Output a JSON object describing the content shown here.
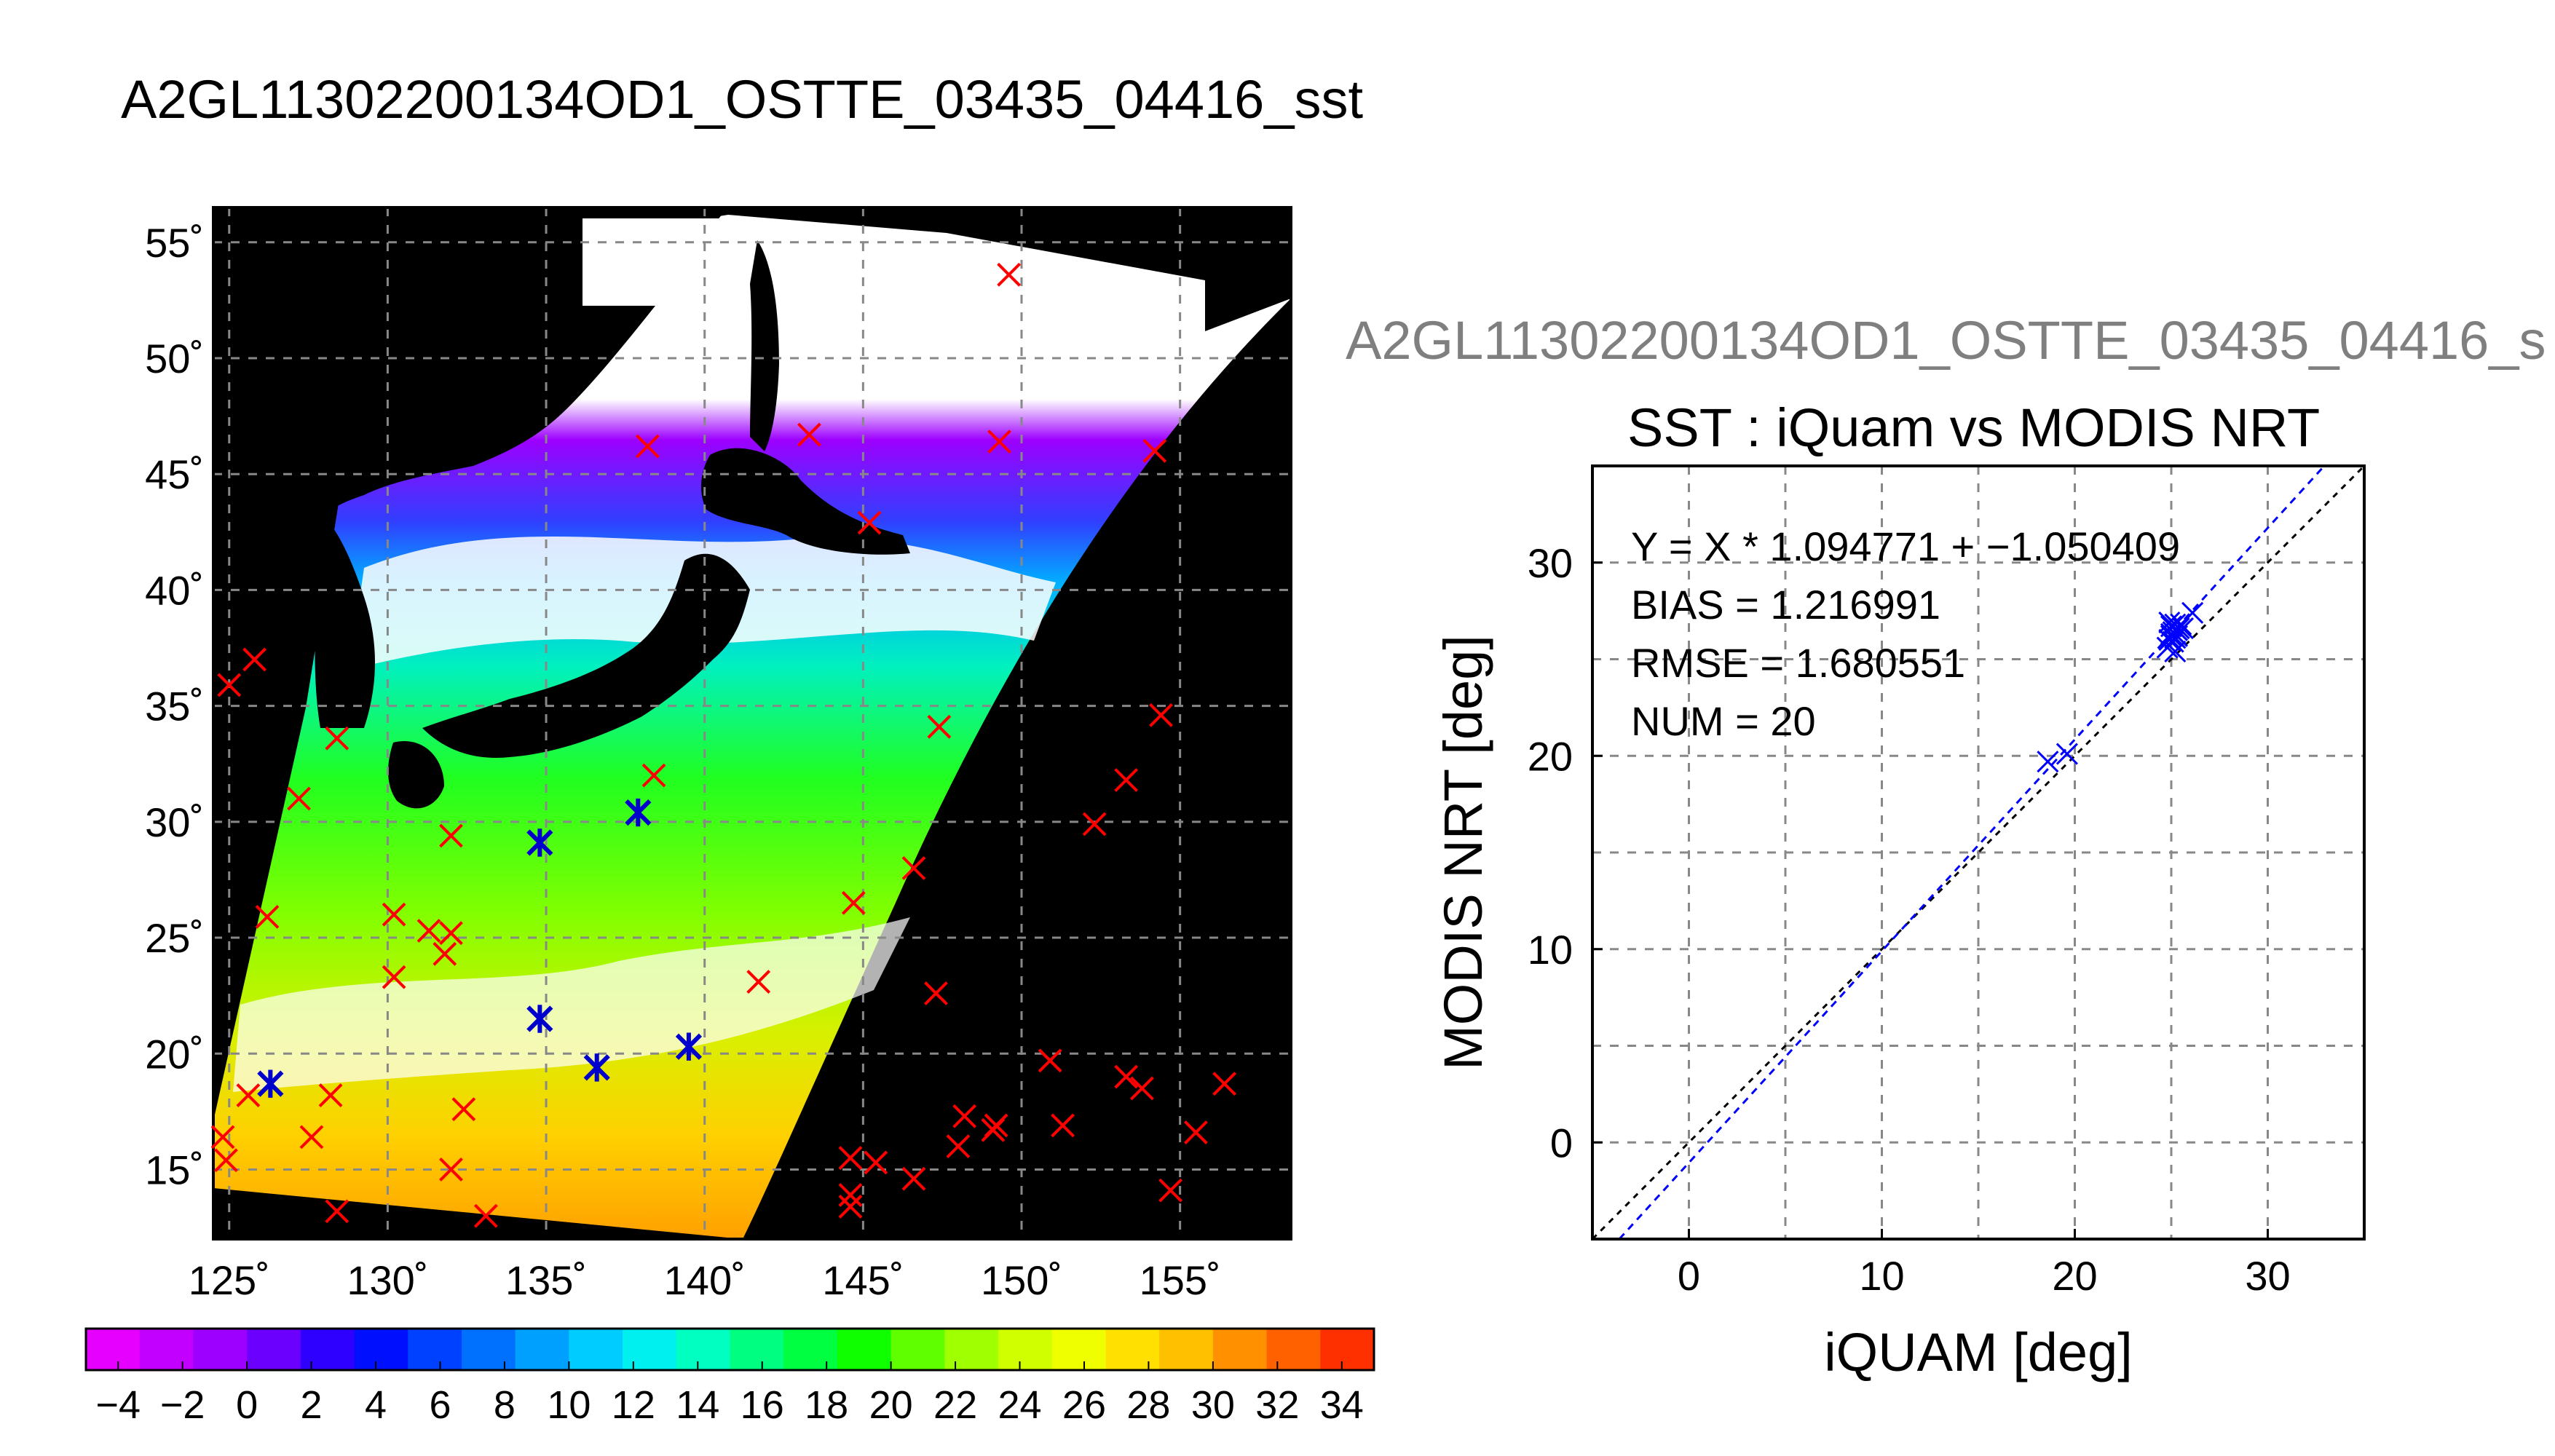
{
  "main_title": "A2GL11302200134OD1_OSTTE_03435_04416_sst",
  "sub_title": "A2GL11302200134OD1_OSTTE_03435_04416_s",
  "colors": {
    "match_marker": "#ff0000",
    "valid_marker": "#0000cc",
    "land": "#000000",
    "fit_line": "#0000ff",
    "identity_line": "#000000"
  },
  "chart_data": [
    {
      "type": "heatmap",
      "title": "",
      "xlabel": "",
      "ylabel": "",
      "xlim": [
        124.5,
        158.5
      ],
      "ylim": [
        12,
        56.5
      ],
      "x_ticks": [
        125,
        130,
        135,
        140,
        145,
        150,
        155
      ],
      "y_ticks": [
        15,
        20,
        25,
        30,
        35,
        40,
        45,
        50,
        55
      ],
      "x_tick_labels": [
        "125˚",
        "130˚",
        "135˚",
        "140˚",
        "145˚",
        "150˚",
        "155˚"
      ],
      "y_tick_labels": [
        "15˚",
        "20˚",
        "25˚",
        "30˚",
        "35˚",
        "40˚",
        "45˚",
        "50˚",
        "55˚"
      ],
      "grid": true,
      "colorbar": {
        "min": -5,
        "max": 35,
        "tick_labels": [
          "−4",
          "−2",
          "0",
          "2",
          "4",
          "6",
          "8",
          "10",
          "12",
          "14",
          "16",
          "18",
          "20",
          "22",
          "24",
          "26",
          "28",
          "30",
          "32",
          "34"
        ],
        "colors": [
          "#e600ff",
          "#c200ff",
          "#9d00ff",
          "#6c00ff",
          "#2d00ff",
          "#0010ff",
          "#0040ff",
          "#0070ff",
          "#00a0ff",
          "#00ccff",
          "#00f0f0",
          "#00ffc0",
          "#00ff80",
          "#00ff40",
          "#10ff00",
          "#60ff00",
          "#a0ff00",
          "#d0ff00",
          "#f0ff00",
          "#ffe000",
          "#ffc000",
          "#ff9000",
          "#ff6000",
          "#ff3000"
        ]
      },
      "matchups": [
        {
          "lon": 125.0,
          "lat": 35.9
        },
        {
          "lon": 125.8,
          "lat": 37.0
        },
        {
          "lon": 124.8,
          "lat": 16.4
        },
        {
          "lon": 124.9,
          "lat": 15.4
        },
        {
          "lon": 126.3,
          "lat": 18.7
        },
        {
          "lon": 125.6,
          "lat": 18.2
        },
        {
          "lon": 126.2,
          "lat": 25.9
        },
        {
          "lon": 127.2,
          "lat": 31.0
        },
        {
          "lon": 128.4,
          "lat": 33.6
        },
        {
          "lon": 128.2,
          "lat": 18.2
        },
        {
          "lon": 127.6,
          "lat": 16.4
        },
        {
          "lon": 128.4,
          "lat": 13.2
        },
        {
          "lon": 130.2,
          "lat": 26.0
        },
        {
          "lon": 130.2,
          "lat": 23.3
        },
        {
          "lon": 131.3,
          "lat": 25.3
        },
        {
          "lon": 132.0,
          "lat": 25.2
        },
        {
          "lon": 131.8,
          "lat": 24.3
        },
        {
          "lon": 132.0,
          "lat": 29.4
        },
        {
          "lon": 132.4,
          "lat": 17.6
        },
        {
          "lon": 132.0,
          "lat": 15.0
        },
        {
          "lon": 133.1,
          "lat": 13.0
        },
        {
          "lon": 134.8,
          "lat": 29.1
        },
        {
          "lon": 134.8,
          "lat": 21.5
        },
        {
          "lon": 136.6,
          "lat": 19.4
        },
        {
          "lon": 137.9,
          "lat": 30.4
        },
        {
          "lon": 138.4,
          "lat": 32.0
        },
        {
          "lon": 139.5,
          "lat": 20.3
        },
        {
          "lon": 141.7,
          "lat": 23.1
        },
        {
          "lon": 138.2,
          "lat": 46.2
        },
        {
          "lon": 143.3,
          "lat": 46.7
        },
        {
          "lon": 145.2,
          "lat": 42.9
        },
        {
          "lon": 144.7,
          "lat": 26.5
        },
        {
          "lon": 149.3,
          "lat": 46.4
        },
        {
          "lon": 154.2,
          "lat": 46.0
        },
        {
          "lon": 149.6,
          "lat": 53.6
        },
        {
          "lon": 147.4,
          "lat": 34.1
        },
        {
          "lon": 146.6,
          "lat": 28.0
        },
        {
          "lon": 147.3,
          "lat": 22.6
        },
        {
          "lon": 154.4,
          "lat": 34.6
        },
        {
          "lon": 153.3,
          "lat": 31.8
        },
        {
          "lon": 152.3,
          "lat": 29.9
        },
        {
          "lon": 150.9,
          "lat": 19.7
        },
        {
          "lon": 153.3,
          "lat": 19.0
        },
        {
          "lon": 153.8,
          "lat": 18.5
        },
        {
          "lon": 156.4,
          "lat": 18.7
        },
        {
          "lon": 155.5,
          "lat": 16.6
        },
        {
          "lon": 154.7,
          "lat": 14.1
        },
        {
          "lon": 151.3,
          "lat": 16.9
        },
        {
          "lon": 149.2,
          "lat": 16.9
        },
        {
          "lon": 149.1,
          "lat": 16.7
        },
        {
          "lon": 148.2,
          "lat": 17.3
        },
        {
          "lon": 148.0,
          "lat": 16.0
        },
        {
          "lon": 146.6,
          "lat": 14.6
        },
        {
          "lon": 145.4,
          "lat": 15.3
        },
        {
          "lon": 144.6,
          "lat": 15.5
        },
        {
          "lon": 144.6,
          "lat": 13.9
        },
        {
          "lon": 144.6,
          "lat": 13.4
        }
      ],
      "valid_matchups": [
        {
          "lon": 126.3,
          "lat": 18.7
        },
        {
          "lon": 134.8,
          "lat": 29.1
        },
        {
          "lon": 134.8,
          "lat": 21.5
        },
        {
          "lon": 136.6,
          "lat": 19.4
        },
        {
          "lon": 137.9,
          "lat": 30.4
        },
        {
          "lon": 139.5,
          "lat": 20.3
        }
      ]
    },
    {
      "type": "scatter",
      "title": "SST : iQuam vs MODIS NRT",
      "xlabel": "iQUAM [deg]",
      "ylabel": "MODIS NRT [deg]",
      "xlim": [
        -5,
        35
      ],
      "ylim": [
        -5,
        35
      ],
      "x_ticks": [
        0,
        10,
        20,
        30
      ],
      "y_ticks": [
        0,
        10,
        20,
        30
      ],
      "x_tick_labels": [
        "0",
        "10",
        "20",
        "30"
      ],
      "y_tick_labels": [
        "0",
        "10",
        "20",
        "30"
      ],
      "grid": true,
      "annotations": [
        "Y = X * 1.094771 + −1.050409",
        "BIAS = 1.216991",
        "RMSE = 1.680551",
        "NUM = 20"
      ],
      "fit": {
        "slope": 1.094771,
        "intercept": -1.050409
      },
      "series": [
        {
          "x": [
            18.6,
            19.6,
            24.8,
            24.9,
            25.0,
            25.0,
            25.1,
            25.1,
            25.2,
            25.2,
            25.3,
            25.3,
            25.4,
            25.5,
            24.9,
            25.0,
            25.2,
            25.3,
            26.1,
            25.6
          ],
          "y": [
            19.7,
            20.1,
            25.6,
            26.0,
            26.3,
            26.7,
            25.9,
            26.4,
            26.1,
            26.8,
            26.5,
            26.2,
            26.6,
            26.8,
            26.9,
            26.2,
            25.4,
            26.5,
            27.4,
            26.6
          ]
        }
      ]
    }
  ]
}
